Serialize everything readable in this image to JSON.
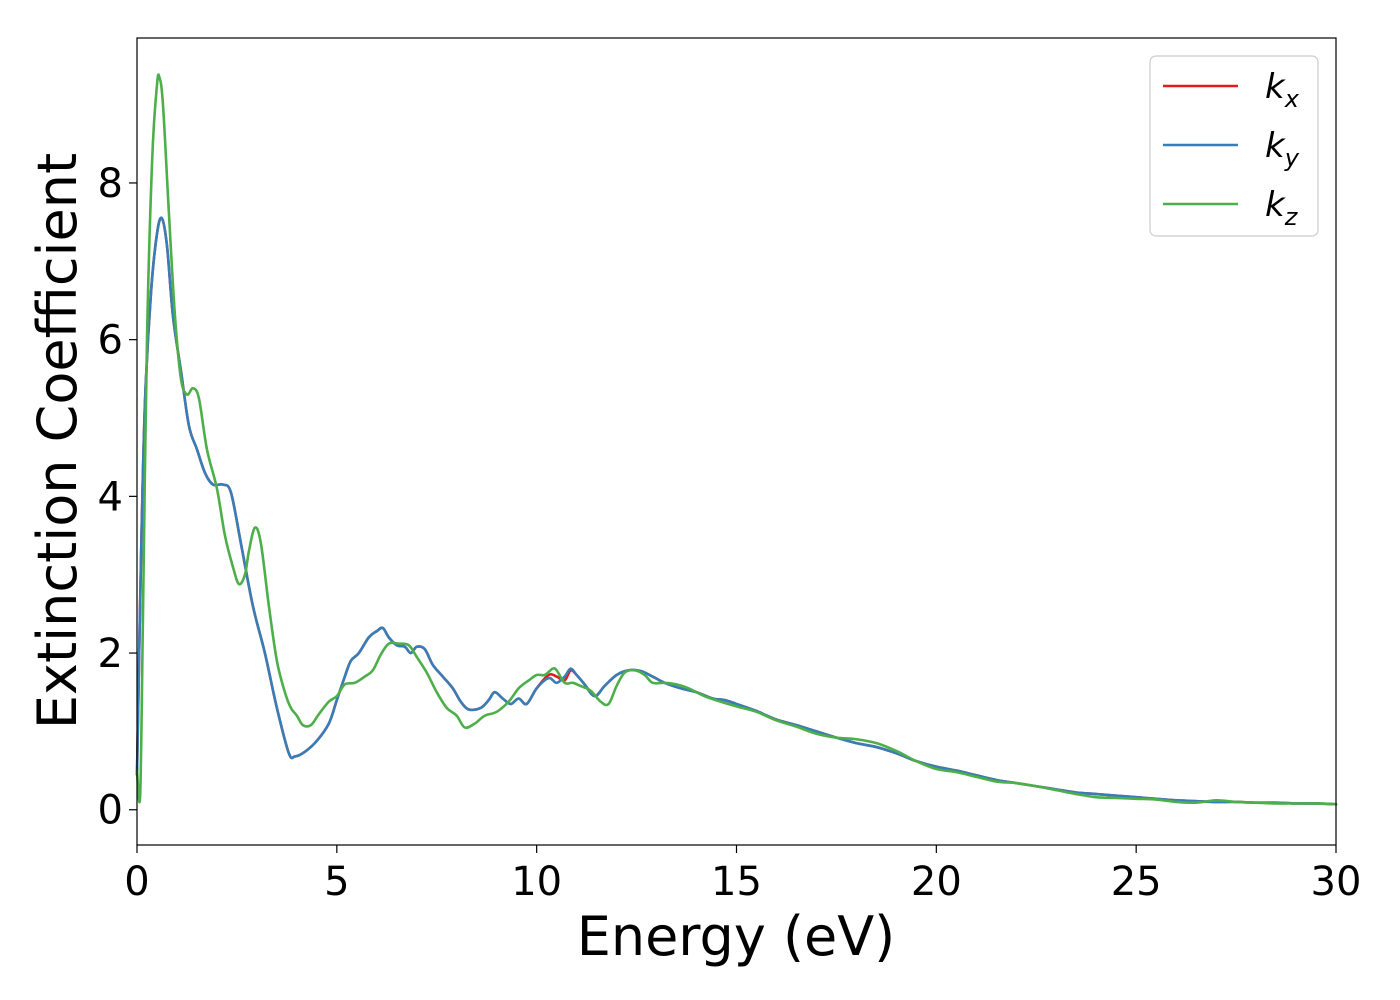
{
  "chart_data": {
    "type": "line",
    "xlabel": "Energy (eV)",
    "ylabel": "Extinction Coefficient",
    "xlim": [
      0,
      30
    ],
    "ylim": [
      -0.45,
      9.85
    ],
    "xticks": [
      "0",
      "5",
      "10",
      "15",
      "20",
      "25",
      "30"
    ],
    "yticks": [
      "0",
      "2",
      "4",
      "6",
      "8"
    ],
    "grid": false,
    "legend_position": "top-right",
    "series": [
      {
        "name": "k_x",
        "label_base": "k",
        "label_sub": "x",
        "color": "#e41a1c",
        "points": [
          [
            0.0,
            0.45
          ],
          [
            0.1,
            3.2
          ],
          [
            0.2,
            5.2
          ],
          [
            0.35,
            6.6
          ],
          [
            0.5,
            7.35
          ],
          [
            0.62,
            7.55
          ],
          [
            0.75,
            7.2
          ],
          [
            0.9,
            6.3
          ],
          [
            1.1,
            5.6
          ],
          [
            1.3,
            4.9
          ],
          [
            1.5,
            4.6
          ],
          [
            1.7,
            4.3
          ],
          [
            1.9,
            4.15
          ],
          [
            2.15,
            4.15
          ],
          [
            2.35,
            4.05
          ],
          [
            2.6,
            3.4
          ],
          [
            2.9,
            2.6
          ],
          [
            3.2,
            2.0
          ],
          [
            3.5,
            1.3
          ],
          [
            3.8,
            0.72
          ],
          [
            3.95,
            0.68
          ],
          [
            4.2,
            0.74
          ],
          [
            4.5,
            0.88
          ],
          [
            4.8,
            1.1
          ],
          [
            5.0,
            1.4
          ],
          [
            5.2,
            1.7
          ],
          [
            5.35,
            1.9
          ],
          [
            5.55,
            2.0
          ],
          [
            5.8,
            2.2
          ],
          [
            6.0,
            2.28
          ],
          [
            6.15,
            2.32
          ],
          [
            6.3,
            2.2
          ],
          [
            6.5,
            2.1
          ],
          [
            6.7,
            2.08
          ],
          [
            6.85,
            2.0
          ],
          [
            7.0,
            2.08
          ],
          [
            7.2,
            2.05
          ],
          [
            7.4,
            1.85
          ],
          [
            7.65,
            1.7
          ],
          [
            7.9,
            1.55
          ],
          [
            8.1,
            1.38
          ],
          [
            8.3,
            1.28
          ],
          [
            8.6,
            1.3
          ],
          [
            8.8,
            1.4
          ],
          [
            8.95,
            1.5
          ],
          [
            9.15,
            1.42
          ],
          [
            9.35,
            1.35
          ],
          [
            9.55,
            1.42
          ],
          [
            9.75,
            1.35
          ],
          [
            10.0,
            1.55
          ],
          [
            10.3,
            1.72
          ],
          [
            10.5,
            1.7
          ],
          [
            10.7,
            1.65
          ],
          [
            10.85,
            1.78
          ],
          [
            11.0,
            1.72
          ],
          [
            11.2,
            1.6
          ],
          [
            11.45,
            1.45
          ],
          [
            11.7,
            1.58
          ],
          [
            12.0,
            1.72
          ],
          [
            12.3,
            1.78
          ],
          [
            12.6,
            1.77
          ],
          [
            12.9,
            1.7
          ],
          [
            13.2,
            1.62
          ],
          [
            13.6,
            1.55
          ],
          [
            14.0,
            1.5
          ],
          [
            14.4,
            1.42
          ],
          [
            14.7,
            1.4
          ],
          [
            15.0,
            1.35
          ],
          [
            15.5,
            1.26
          ],
          [
            16.0,
            1.15
          ],
          [
            16.5,
            1.08
          ],
          [
            17.0,
            1.0
          ],
          [
            17.5,
            0.92
          ],
          [
            18.0,
            0.85
          ],
          [
            18.5,
            0.8
          ],
          [
            19.0,
            0.72
          ],
          [
            19.5,
            0.62
          ],
          [
            20.0,
            0.55
          ],
          [
            20.5,
            0.5
          ],
          [
            21.0,
            0.44
          ],
          [
            21.5,
            0.38
          ],
          [
            22.0,
            0.34
          ],
          [
            22.5,
            0.3
          ],
          [
            23.0,
            0.26
          ],
          [
            23.5,
            0.22
          ],
          [
            24.0,
            0.2
          ],
          [
            24.5,
            0.18
          ],
          [
            25.0,
            0.16
          ],
          [
            25.5,
            0.14
          ],
          [
            26.0,
            0.12
          ],
          [
            26.5,
            0.11
          ],
          [
            27.0,
            0.1
          ],
          [
            27.5,
            0.1
          ],
          [
            28.0,
            0.09
          ],
          [
            28.5,
            0.09
          ],
          [
            29.0,
            0.08
          ],
          [
            29.5,
            0.08
          ],
          [
            30.0,
            0.07
          ]
        ]
      },
      {
        "name": "k_y",
        "label_base": "k",
        "label_sub": "y",
        "color": "#377eb8",
        "points": [
          [
            0.0,
            0.45
          ],
          [
            0.1,
            3.2
          ],
          [
            0.2,
            5.2
          ],
          [
            0.35,
            6.6
          ],
          [
            0.5,
            7.35
          ],
          [
            0.62,
            7.55
          ],
          [
            0.75,
            7.2
          ],
          [
            0.9,
            6.3
          ],
          [
            1.1,
            5.6
          ],
          [
            1.3,
            4.9
          ],
          [
            1.5,
            4.6
          ],
          [
            1.7,
            4.3
          ],
          [
            1.9,
            4.15
          ],
          [
            2.15,
            4.15
          ],
          [
            2.35,
            4.05
          ],
          [
            2.6,
            3.4
          ],
          [
            2.9,
            2.6
          ],
          [
            3.2,
            2.0
          ],
          [
            3.5,
            1.3
          ],
          [
            3.8,
            0.72
          ],
          [
            3.95,
            0.68
          ],
          [
            4.2,
            0.74
          ],
          [
            4.5,
            0.88
          ],
          [
            4.8,
            1.1
          ],
          [
            5.0,
            1.4
          ],
          [
            5.2,
            1.7
          ],
          [
            5.35,
            1.9
          ],
          [
            5.55,
            2.0
          ],
          [
            5.8,
            2.2
          ],
          [
            6.0,
            2.28
          ],
          [
            6.15,
            2.32
          ],
          [
            6.3,
            2.2
          ],
          [
            6.5,
            2.1
          ],
          [
            6.7,
            2.08
          ],
          [
            6.85,
            2.0
          ],
          [
            7.0,
            2.08
          ],
          [
            7.2,
            2.05
          ],
          [
            7.4,
            1.85
          ],
          [
            7.65,
            1.7
          ],
          [
            7.9,
            1.55
          ],
          [
            8.1,
            1.38
          ],
          [
            8.3,
            1.28
          ],
          [
            8.6,
            1.3
          ],
          [
            8.8,
            1.4
          ],
          [
            8.95,
            1.5
          ],
          [
            9.15,
            1.42
          ],
          [
            9.35,
            1.35
          ],
          [
            9.55,
            1.42
          ],
          [
            9.75,
            1.35
          ],
          [
            10.0,
            1.55
          ],
          [
            10.3,
            1.68
          ],
          [
            10.5,
            1.62
          ],
          [
            10.7,
            1.7
          ],
          [
            10.85,
            1.8
          ],
          [
            11.0,
            1.72
          ],
          [
            11.2,
            1.6
          ],
          [
            11.45,
            1.45
          ],
          [
            11.7,
            1.58
          ],
          [
            12.0,
            1.72
          ],
          [
            12.3,
            1.78
          ],
          [
            12.6,
            1.77
          ],
          [
            12.9,
            1.7
          ],
          [
            13.2,
            1.62
          ],
          [
            13.6,
            1.55
          ],
          [
            14.0,
            1.5
          ],
          [
            14.4,
            1.42
          ],
          [
            14.7,
            1.4
          ],
          [
            15.0,
            1.35
          ],
          [
            15.5,
            1.26
          ],
          [
            16.0,
            1.15
          ],
          [
            16.5,
            1.08
          ],
          [
            17.0,
            1.0
          ],
          [
            17.5,
            0.92
          ],
          [
            18.0,
            0.85
          ],
          [
            18.5,
            0.8
          ],
          [
            19.0,
            0.72
          ],
          [
            19.5,
            0.62
          ],
          [
            20.0,
            0.55
          ],
          [
            20.5,
            0.5
          ],
          [
            21.0,
            0.44
          ],
          [
            21.5,
            0.38
          ],
          [
            22.0,
            0.34
          ],
          [
            22.5,
            0.3
          ],
          [
            23.0,
            0.26
          ],
          [
            23.5,
            0.22
          ],
          [
            24.0,
            0.2
          ],
          [
            24.5,
            0.18
          ],
          [
            25.0,
            0.16
          ],
          [
            25.5,
            0.14
          ],
          [
            26.0,
            0.12
          ],
          [
            26.5,
            0.11
          ],
          [
            27.0,
            0.1
          ],
          [
            27.5,
            0.1
          ],
          [
            28.0,
            0.09
          ],
          [
            28.5,
            0.09
          ],
          [
            29.0,
            0.08
          ],
          [
            29.5,
            0.08
          ],
          [
            30.0,
            0.07
          ]
        ]
      },
      {
        "name": "k_z",
        "label_base": "k",
        "label_sub": "z",
        "color": "#4daf4a",
        "points": [
          [
            0.0,
            0.5
          ],
          [
            0.08,
            0.2
          ],
          [
            0.15,
            2.5
          ],
          [
            0.25,
            6.0
          ],
          [
            0.38,
            8.3
          ],
          [
            0.5,
            9.25
          ],
          [
            0.56,
            9.35
          ],
          [
            0.65,
            9.0
          ],
          [
            0.8,
            7.6
          ],
          [
            0.95,
            6.3
          ],
          [
            1.1,
            5.5
          ],
          [
            1.25,
            5.3
          ],
          [
            1.4,
            5.38
          ],
          [
            1.55,
            5.25
          ],
          [
            1.75,
            4.6
          ],
          [
            2.0,
            4.1
          ],
          [
            2.2,
            3.5
          ],
          [
            2.4,
            3.1
          ],
          [
            2.55,
            2.88
          ],
          [
            2.7,
            3.0
          ],
          [
            2.8,
            3.3
          ],
          [
            2.95,
            3.6
          ],
          [
            3.1,
            3.4
          ],
          [
            3.3,
            2.6
          ],
          [
            3.5,
            1.9
          ],
          [
            3.7,
            1.5
          ],
          [
            3.85,
            1.3
          ],
          [
            4.0,
            1.2
          ],
          [
            4.15,
            1.08
          ],
          [
            4.35,
            1.08
          ],
          [
            4.55,
            1.22
          ],
          [
            4.8,
            1.38
          ],
          [
            5.0,
            1.45
          ],
          [
            5.2,
            1.6
          ],
          [
            5.45,
            1.62
          ],
          [
            5.7,
            1.7
          ],
          [
            5.9,
            1.78
          ],
          [
            6.1,
            1.98
          ],
          [
            6.3,
            2.12
          ],
          [
            6.55,
            2.12
          ],
          [
            6.8,
            2.1
          ],
          [
            7.0,
            1.95
          ],
          [
            7.25,
            1.75
          ],
          [
            7.5,
            1.5
          ],
          [
            7.75,
            1.3
          ],
          [
            8.0,
            1.2
          ],
          [
            8.2,
            1.05
          ],
          [
            8.45,
            1.1
          ],
          [
            8.7,
            1.2
          ],
          [
            9.0,
            1.25
          ],
          [
            9.3,
            1.38
          ],
          [
            9.55,
            1.55
          ],
          [
            9.8,
            1.65
          ],
          [
            10.0,
            1.72
          ],
          [
            10.2,
            1.72
          ],
          [
            10.4,
            1.8
          ],
          [
            10.5,
            1.78
          ],
          [
            10.7,
            1.62
          ],
          [
            10.9,
            1.62
          ],
          [
            11.1,
            1.58
          ],
          [
            11.35,
            1.52
          ],
          [
            11.6,
            1.38
          ],
          [
            11.8,
            1.35
          ],
          [
            12.0,
            1.58
          ],
          [
            12.2,
            1.75
          ],
          [
            12.45,
            1.78
          ],
          [
            12.7,
            1.72
          ],
          [
            12.9,
            1.62
          ],
          [
            13.2,
            1.62
          ],
          [
            13.5,
            1.6
          ],
          [
            13.8,
            1.55
          ],
          [
            14.2,
            1.45
          ],
          [
            14.6,
            1.38
          ],
          [
            15.0,
            1.32
          ],
          [
            15.5,
            1.25
          ],
          [
            16.0,
            1.14
          ],
          [
            16.5,
            1.06
          ],
          [
            17.0,
            0.97
          ],
          [
            17.5,
            0.92
          ],
          [
            18.0,
            0.9
          ],
          [
            18.5,
            0.85
          ],
          [
            19.0,
            0.75
          ],
          [
            19.5,
            0.62
          ],
          [
            20.0,
            0.52
          ],
          [
            20.5,
            0.48
          ],
          [
            21.0,
            0.42
          ],
          [
            21.5,
            0.36
          ],
          [
            22.0,
            0.34
          ],
          [
            22.5,
            0.3
          ],
          [
            23.0,
            0.25
          ],
          [
            23.5,
            0.2
          ],
          [
            24.0,
            0.16
          ],
          [
            24.5,
            0.15
          ],
          [
            25.0,
            0.14
          ],
          [
            25.5,
            0.13
          ],
          [
            26.0,
            0.1
          ],
          [
            26.5,
            0.09
          ],
          [
            27.0,
            0.12
          ],
          [
            27.5,
            0.1
          ],
          [
            28.0,
            0.09
          ],
          [
            28.5,
            0.08
          ],
          [
            29.0,
            0.08
          ],
          [
            29.5,
            0.08
          ],
          [
            30.0,
            0.07
          ]
        ]
      }
    ]
  }
}
